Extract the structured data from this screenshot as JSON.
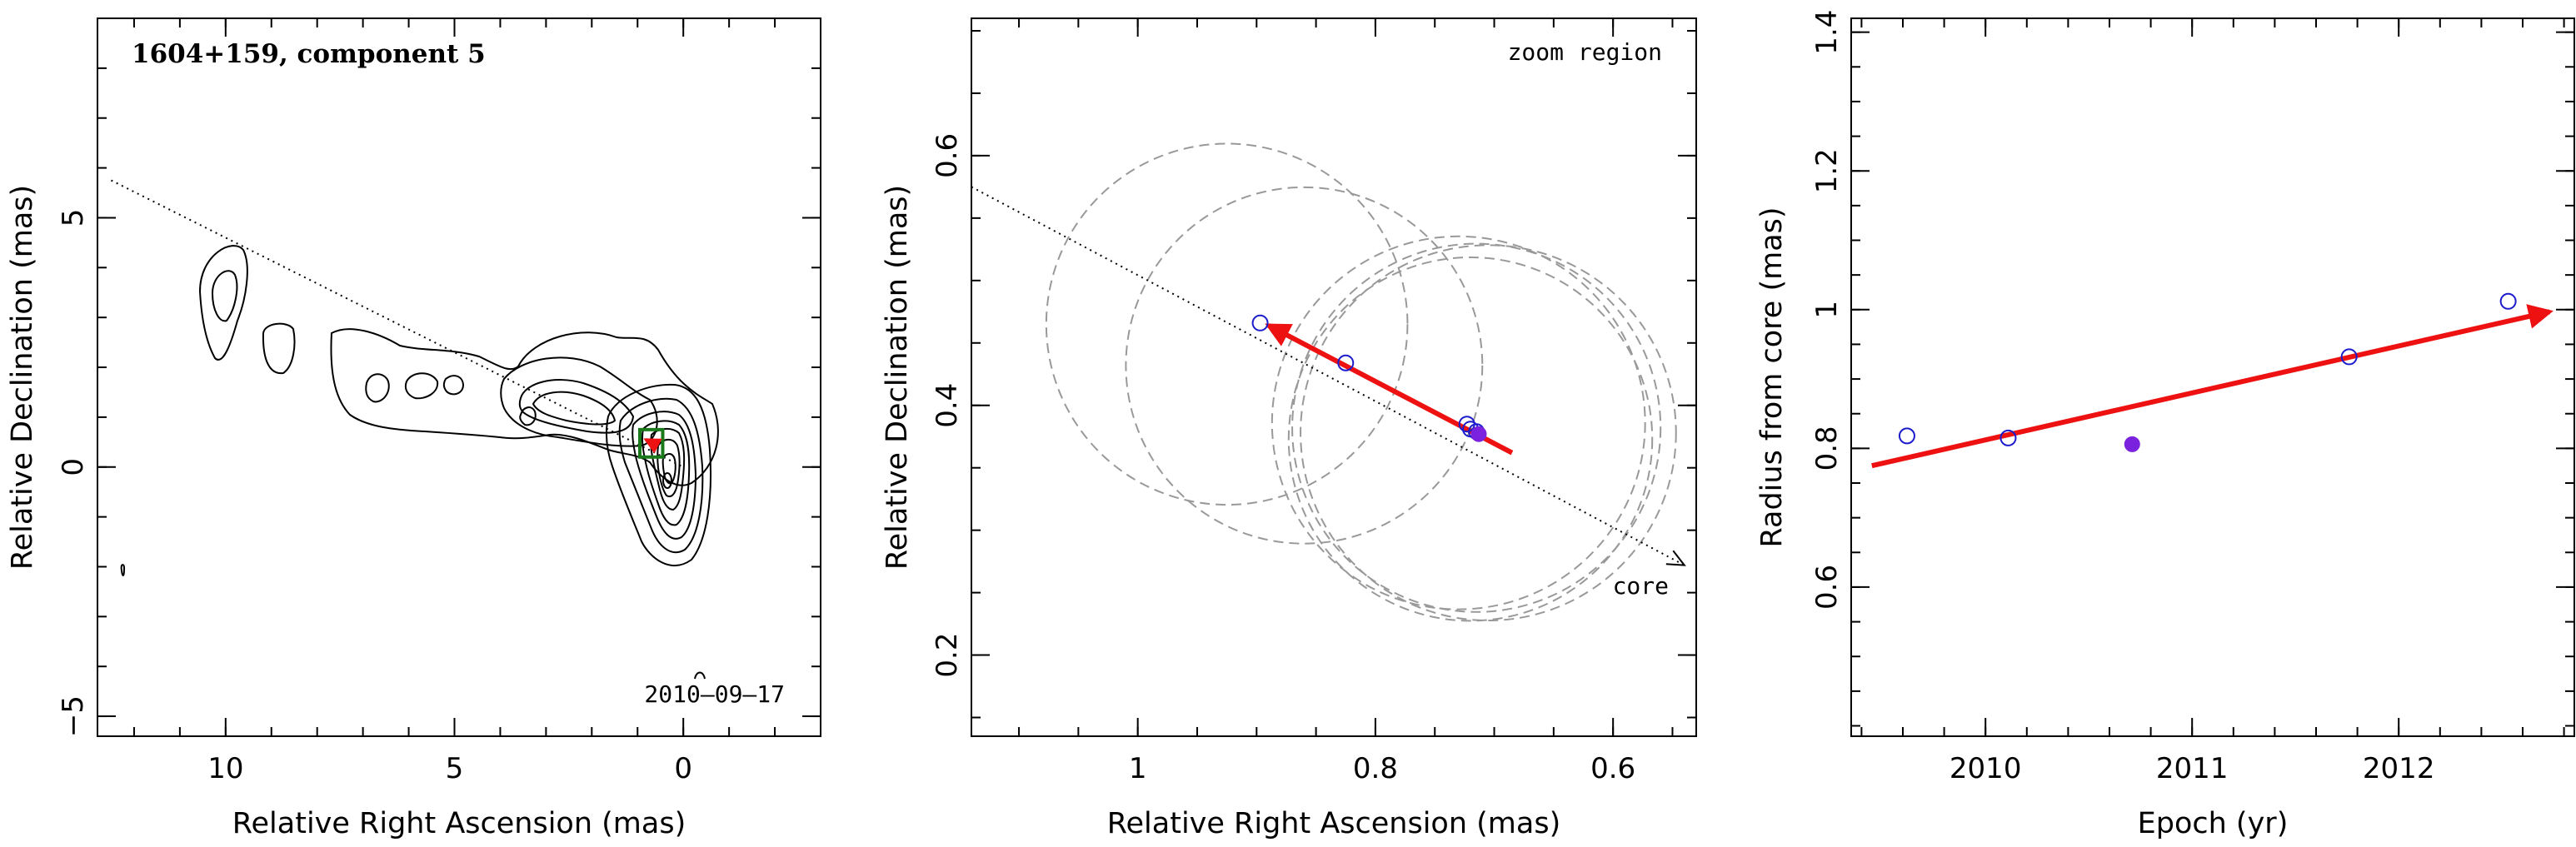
{
  "chart_data": [
    {
      "type": "contour",
      "panel_label": "1604+159, component 5",
      "epoch_label": "2010–09–17",
      "xlabel": "Relative Right Ascension (mas)",
      "ylabel": "Relative Declination (mas)",
      "xlim": [
        12.8,
        -3.0
      ],
      "ylim": [
        -5.4,
        9.0
      ],
      "x_ticks": [
        10,
        5,
        0
      ],
      "y_ticks": [
        -5,
        0,
        5
      ],
      "jet_axis": {
        "x": [
          12.5,
          0.0
        ],
        "y": [
          5.75,
          0.0
        ]
      },
      "component_box": {
        "x": [
          0.95,
          0.45
        ],
        "y": [
          0.2,
          0.75
        ]
      },
      "colors": {
        "contour": "#000000",
        "box": "#1a7a1a",
        "axis_line": "#000000"
      }
    },
    {
      "type": "scatter",
      "panel_label": "zoom region",
      "core_label": "core",
      "xlabel": "Relative Right Ascension (mas)",
      "ylabel": "Relative Declination (mas)",
      "xlim": [
        1.14,
        0.53
      ],
      "ylim": [
        0.135,
        0.71
      ],
      "x_ticks": [
        1.0,
        0.8,
        0.6
      ],
      "x_tick_labels": [
        "1",
        "0.8",
        "0.6"
      ],
      "y_ticks": [
        0.2,
        0.4,
        0.6
      ],
      "jet_axis": {
        "x": [
          1.14,
          0.54
        ],
        "y": [
          0.575,
          0.272
        ]
      },
      "points_open": [
        {
          "x": 0.897,
          "y": 0.466
        },
        {
          "x": 0.825,
          "y": 0.434
        },
        {
          "x": 0.723,
          "y": 0.385
        },
        {
          "x": 0.72,
          "y": 0.381
        },
        {
          "x": 0.715,
          "y": 0.379
        }
      ],
      "points_filled": [
        {
          "x": 0.713,
          "y": 0.377
        }
      ],
      "circles": [
        {
          "x": 0.925,
          "y": 0.465,
          "r": 0.152
        },
        {
          "x": 0.86,
          "y": 0.432,
          "r": 0.15
        },
        {
          "x": 0.73,
          "y": 0.386,
          "r": 0.157
        },
        {
          "x": 0.72,
          "y": 0.373,
          "r": 0.153
        },
        {
          "x": 0.715,
          "y": 0.382,
          "r": 0.155
        },
        {
          "x": 0.705,
          "y": 0.378,
          "r": 0.158
        }
      ],
      "velocity_arrow": {
        "x": [
          0.685,
          0.89
        ],
        "y": [
          0.362,
          0.464
        ]
      },
      "colors": {
        "open": "#1c1ccc",
        "filled": "#7a22dd",
        "arrow": "#ee1111",
        "circle": "#999999"
      }
    },
    {
      "type": "scatter",
      "xlabel": "Epoch (yr)",
      "ylabel": "Radius from core (mas)",
      "xlim": [
        2009.35,
        2012.85
      ],
      "ylim": [
        0.385,
        1.42
      ],
      "x_ticks": [
        2010,
        2011,
        2012
      ],
      "y_ticks": [
        0.6,
        0.8,
        1.0,
        1.2,
        1.4
      ],
      "y_tick_labels": [
        "0.6",
        "0.8",
        "1",
        "1.2",
        "1.4"
      ],
      "points_open": [
        {
          "x": 2009.62,
          "y": 0.818
        },
        {
          "x": 2010.11,
          "y": 0.815
        },
        {
          "x": 2011.76,
          "y": 0.932
        },
        {
          "x": 2012.53,
          "y": 1.012
        }
      ],
      "points_filled": [
        {
          "x": 2010.71,
          "y": 0.806
        }
      ],
      "fit_arrow": {
        "x": [
          2009.45,
          2012.73
        ],
        "y": [
          0.775,
          0.997
        ]
      },
      "colors": {
        "open": "#1c1ccc",
        "filled": "#7a22dd",
        "arrow": "#ee1111"
      }
    }
  ]
}
